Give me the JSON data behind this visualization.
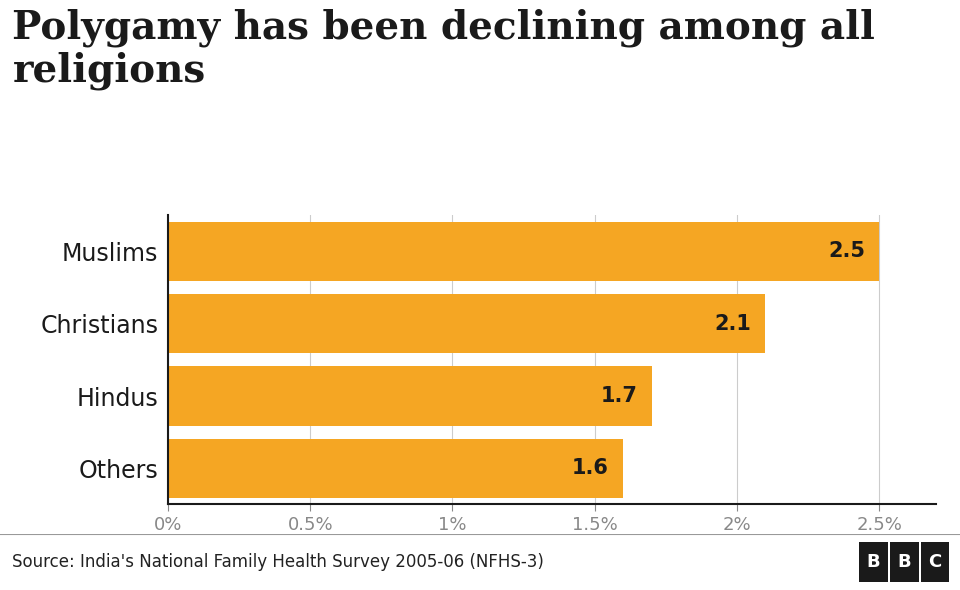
{
  "title": "Polygamy has been declining among all\nreligions",
  "categories": [
    "Muslims",
    "Christians",
    "Hindus",
    "Others"
  ],
  "values": [
    2.5,
    2.1,
    1.7,
    1.6
  ],
  "bar_color": "#F5A623",
  "label_color": "#1a1a1a",
  "background_color": "#ffffff",
  "source_text": "Source: India's National Family Health Survey 2005-06 (NFHS-3)",
  "bbc_text": "BBC",
  "xlim": [
    0,
    2.7
  ],
  "xticks": [
    0,
    0.5,
    1.0,
    1.5,
    2.0,
    2.5
  ],
  "xtick_labels": [
    "0%",
    "0.5%",
    "1%",
    "1.5%",
    "2%",
    "2.5%"
  ],
  "title_fontsize": 28,
  "tick_fontsize": 13,
  "label_fontsize": 17,
  "value_fontsize": 15,
  "source_fontsize": 12,
  "bar_height": 0.82,
  "footer_bg": "#f0f0f0",
  "grid_color": "#cccccc",
  "spine_color": "#1a1a1a",
  "tick_color": "#888888"
}
